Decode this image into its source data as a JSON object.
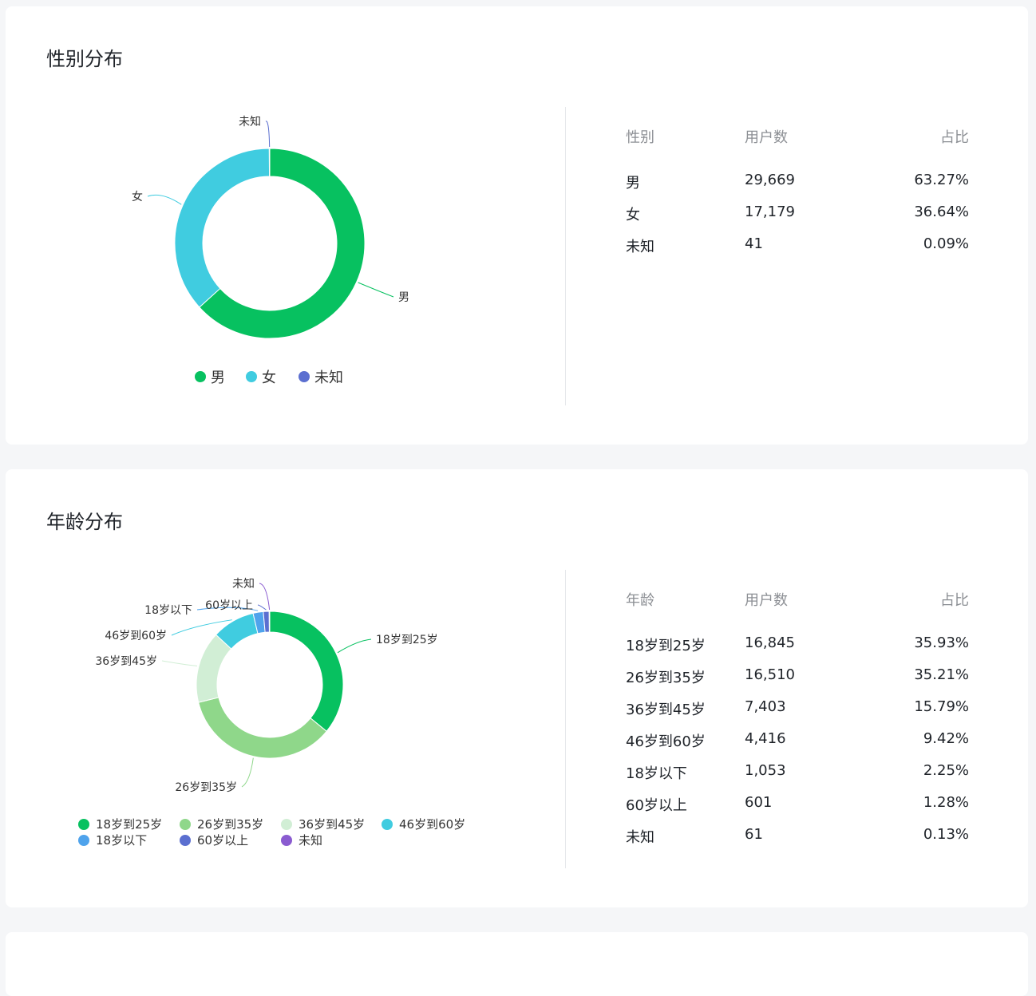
{
  "gender": {
    "title": "性别分布",
    "table": {
      "headers": [
        "性别",
        "用户数",
        "占比"
      ],
      "rows": [
        [
          "男",
          "29,669",
          "63.27%"
        ],
        [
          "女",
          "17,179",
          "36.64%"
        ],
        [
          "未知",
          "41",
          "0.09%"
        ]
      ]
    },
    "legend": [
      "男",
      "女",
      "未知"
    ]
  },
  "age": {
    "title": "年龄分布",
    "table": {
      "headers": [
        "年龄",
        "用户数",
        "占比"
      ],
      "rows": [
        [
          "18岁到25岁",
          "16,845",
          "35.93%"
        ],
        [
          "26岁到35岁",
          "16,510",
          "35.21%"
        ],
        [
          "36岁到45岁",
          "7,403",
          "15.79%"
        ],
        [
          "46岁到60岁",
          "4,416",
          "9.42%"
        ],
        [
          "18岁以下",
          "1,053",
          "2.25%"
        ],
        [
          "60岁以上",
          "601",
          "1.28%"
        ],
        [
          "未知",
          "61",
          "0.13%"
        ]
      ]
    },
    "legend": [
      "18岁到25岁",
      "26岁到35岁",
      "36岁到45岁",
      "46岁到60岁",
      "18岁以下",
      "60岁以上",
      "未知"
    ]
  },
  "chart_data": [
    {
      "type": "pie",
      "categories": [
        "男",
        "女",
        "未知"
      ],
      "values": [
        29669,
        17179,
        41
      ],
      "colors": [
        "#07c160",
        "#40cce0",
        "#5b6fd0"
      ],
      "style": "donut",
      "legend_position": "bottom"
    },
    {
      "type": "pie",
      "categories": [
        "18岁到25岁",
        "26岁到35岁",
        "36岁到45岁",
        "46岁到60岁",
        "18岁以下",
        "60岁以上",
        "未知"
      ],
      "values": [
        16845,
        16510,
        7403,
        4416,
        1053,
        601,
        61
      ],
      "colors": [
        "#07c160",
        "#8fd78a",
        "#d1eed5",
        "#40cce0",
        "#4fa3ec",
        "#5b6fd0",
        "#8a5bd0"
      ],
      "style": "donut",
      "legend_position": "bottom"
    }
  ]
}
